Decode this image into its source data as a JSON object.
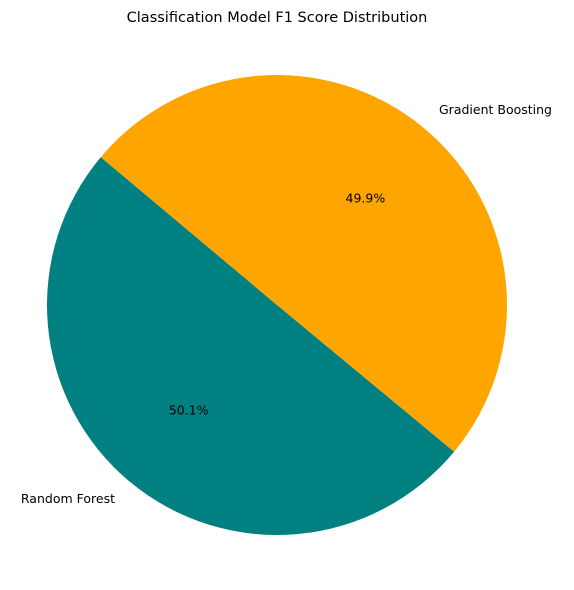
{
  "chart_data": {
    "type": "pie",
    "title": "Classification Model F1 Score Distribution",
    "labels": [
      "Random Forest",
      "Gradient Boosting"
    ],
    "values": [
      50.1,
      49.9
    ],
    "percent_labels": [
      "50.1%",
      "49.9%"
    ],
    "colors": [
      "#008080",
      "#FFA500"
    ],
    "start_angle_deg": 140,
    "counterclockwise": true,
    "legend": "none"
  }
}
